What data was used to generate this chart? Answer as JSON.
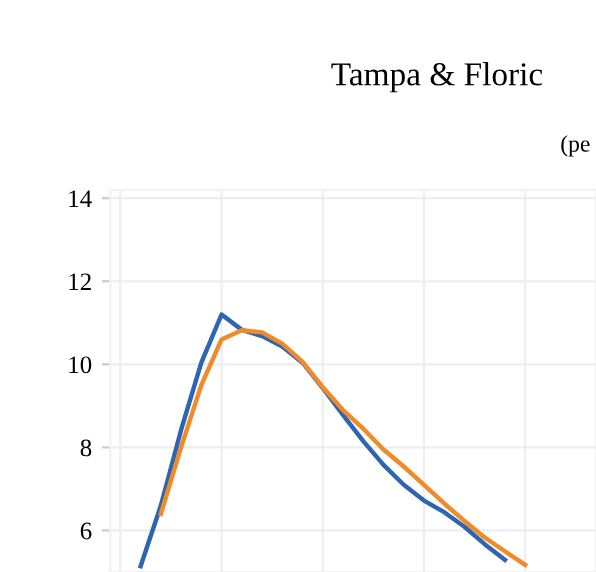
{
  "chart_data": {
    "type": "line",
    "title": "Tampa & Floric",
    "subtitle": "(pe",
    "categories": [
      null,
      null,
      null,
      null,
      null,
      null,
      null,
      null,
      null,
      null,
      null,
      null,
      null,
      null,
      null,
      null,
      null,
      null,
      null,
      null,
      null,
      null,
      null,
      null
    ],
    "series": [
      {
        "color": "#2d64b3",
        "values": [
          null,
          5.14,
          6.6,
          8.42,
          10.04,
          11.2,
          10.83,
          10.68,
          10.43,
          10.04,
          9.43,
          8.78,
          8.15,
          7.58,
          7.1,
          6.72,
          6.44,
          6.09,
          5.67,
          5.29,
          null,
          null,
          null,
          null
        ]
      },
      {
        "color": "#f08b2a",
        "values": [
          null,
          null,
          6.4,
          8.0,
          9.5,
          10.6,
          10.82,
          10.77,
          10.5,
          10.06,
          9.45,
          8.9,
          8.45,
          7.95,
          7.54,
          7.1,
          6.65,
          6.23,
          5.83,
          5.5,
          5.17,
          null,
          null,
          null
        ]
      }
    ],
    "ylim": [
      5,
      14.2
    ],
    "yticks": [
      6,
      8,
      10,
      12,
      14
    ],
    "grid": true,
    "line_style": "solid"
  }
}
